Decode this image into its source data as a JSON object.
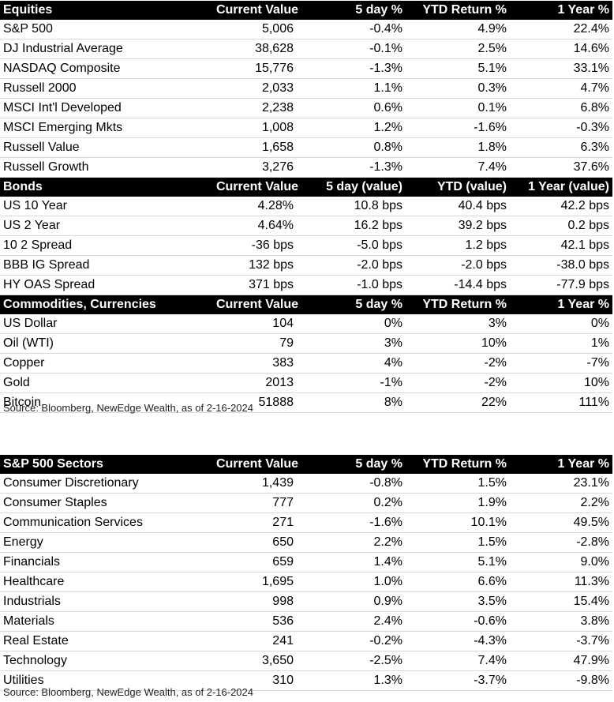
{
  "market_table": {
    "sections": [
      {
        "headers": [
          "Equities",
          "Current Value",
          "5 day %",
          "YTD Return %",
          "1 Year %"
        ],
        "rows": [
          [
            "S&P 500",
            "5,006",
            "-0.4%",
            "4.9%",
            "22.4%"
          ],
          [
            "DJ Industrial Average",
            "38,628",
            "-0.1%",
            "2.5%",
            "14.6%"
          ],
          [
            "NASDAQ Composite",
            "15,776",
            "-1.3%",
            "5.1%",
            "33.1%"
          ],
          [
            "Russell 2000",
            "2,033",
            "1.1%",
            "0.3%",
            "4.7%"
          ],
          [
            "MSCI Int'l Developed",
            "2,238",
            "0.6%",
            "0.1%",
            "6.8%"
          ],
          [
            "MSCI Emerging Mkts",
            "1,008",
            "1.2%",
            "-1.6%",
            "-0.3%"
          ],
          [
            "Russell Value",
            "1,658",
            "0.8%",
            "1.8%",
            "6.3%"
          ],
          [
            "Russell Growth",
            "3,276",
            "-1.3%",
            "7.4%",
            "37.6%"
          ]
        ]
      },
      {
        "headers": [
          "Bonds",
          "Current Value",
          "5 day (value)",
          "YTD (value)",
          "1 Year (value)"
        ],
        "rows": [
          [
            "US 10 Year",
            "4.28%",
            "10.8 bps",
            "40.4 bps",
            "42.2 bps"
          ],
          [
            "US 2 Year",
            "4.64%",
            "16.2 bps",
            "39.2 bps",
            "0.2 bps"
          ],
          [
            "10 2 Spread",
            "-36 bps",
            "-5.0 bps",
            "1.2 bps",
            "42.1 bps"
          ],
          [
            "BBB IG Spread",
            "132 bps",
            "-2.0 bps",
            "-2.0 bps",
            "-38.0 bps"
          ],
          [
            "HY OAS Spread",
            "371 bps",
            "-1.0 bps",
            "-14.4 bps",
            "-77.9 bps"
          ]
        ]
      },
      {
        "headers": [
          "Commodities, Currencies",
          "Current Value",
          "5 day %",
          "YTD Return %",
          "1 Year %"
        ],
        "rows": [
          [
            "US Dollar",
            "104",
            "0%",
            "3%",
            "0%"
          ],
          [
            "Oil (WTI)",
            "79",
            "3%",
            "10%",
            "1%"
          ],
          [
            "Copper",
            "383",
            "4%",
            "-2%",
            "-7%"
          ],
          [
            "Gold",
            "2013",
            "-1%",
            "-2%",
            "10%"
          ],
          [
            "Bitcoin",
            "51888",
            "8%",
            "22%",
            "111%"
          ]
        ]
      }
    ],
    "source": "Source: Bloomberg, NewEdge Wealth, as of 2-16-2024"
  },
  "sector_table": {
    "headers": [
      "S&P 500 Sectors",
      "Current Value",
      "5 day %",
      "YTD Return %",
      "1 Year %"
    ],
    "rows": [
      [
        "Consumer Discretionary",
        "1,439",
        "-0.8%",
        "1.5%",
        "23.1%"
      ],
      [
        "Consumer Staples",
        "777",
        "0.2%",
        "1.9%",
        "2.2%"
      ],
      [
        "Communication Services",
        "271",
        "-1.6%",
        "10.1%",
        "49.5%"
      ],
      [
        "Energy",
        "650",
        "2.2%",
        "1.5%",
        "-2.8%"
      ],
      [
        "Financials",
        "659",
        "1.4%",
        "5.1%",
        "9.0%"
      ],
      [
        "Healthcare",
        "1,695",
        "1.0%",
        "6.6%",
        "11.3%"
      ],
      [
        "Industrials",
        "998",
        "0.9%",
        "3.5%",
        "15.4%"
      ],
      [
        "Materials",
        "536",
        "2.4%",
        "-0.6%",
        "3.8%"
      ],
      [
        "Real Estate",
        "241",
        "-0.2%",
        "-4.3%",
        "-3.7%"
      ],
      [
        "Technology",
        "3,650",
        "-2.5%",
        "7.4%",
        "47.9%"
      ],
      [
        "Utilities",
        "310",
        "1.3%",
        "-3.7%",
        "-9.8%"
      ]
    ],
    "source": "Source: Bloomberg, NewEdge Wealth, as of 2-16-2024"
  }
}
